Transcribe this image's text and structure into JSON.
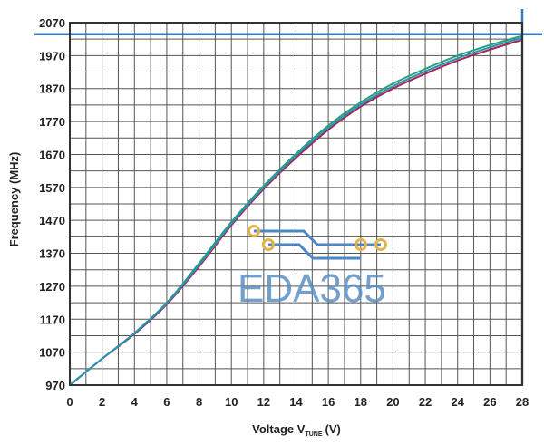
{
  "chart_data": {
    "type": "line",
    "title": "",
    "xlabel": {
      "main": "Voltage V",
      "sub": "TUNE",
      "unit": "(V)"
    },
    "ylabel": "Frequency (MHz)",
    "xlim": [
      0,
      28
    ],
    "ylim": [
      970,
      2070
    ],
    "x_ticks": [
      0,
      2,
      4,
      6,
      8,
      10,
      12,
      14,
      16,
      18,
      20,
      22,
      24,
      26,
      28
    ],
    "y_ticks": [
      970,
      1070,
      1170,
      1270,
      1370,
      1470,
      1570,
      1670,
      1770,
      1870,
      1970,
      2070
    ],
    "grid": true,
    "reference_lines": {
      "x": 28,
      "y": 2035,
      "color": "#3a7bbf"
    },
    "series": [
      {
        "color": "#a8264e",
        "x": [
          0,
          2,
          4,
          6,
          8,
          10,
          12,
          14,
          16,
          18,
          20,
          22,
          24,
          26,
          28
        ],
        "y": [
          970,
          1050,
          1125,
          1215,
          1330,
          1455,
          1565,
          1660,
          1745,
          1815,
          1870,
          1915,
          1955,
          1988,
          2018
        ]
      },
      {
        "color": "#2aa07a",
        "x": [
          0,
          2,
          4,
          6,
          8,
          10,
          12,
          14,
          16,
          18,
          20,
          22,
          24,
          26,
          28
        ],
        "y": [
          970,
          1050,
          1128,
          1220,
          1340,
          1465,
          1575,
          1672,
          1758,
          1828,
          1885,
          1930,
          1970,
          2002,
          2030
        ]
      },
      {
        "color": "#2c8fb5",
        "x": [
          0,
          2,
          4,
          6,
          8,
          10,
          12,
          14,
          16,
          18,
          20,
          22,
          24,
          26,
          28
        ],
        "y": [
          970,
          1050,
          1127,
          1218,
          1335,
          1460,
          1570,
          1666,
          1751,
          1821,
          1877,
          1922,
          1962,
          1995,
          2024
        ]
      }
    ]
  },
  "watermark": {
    "text": "EDA365",
    "trace_color": "#4a86c8",
    "pad_color": "#e3b34a"
  }
}
